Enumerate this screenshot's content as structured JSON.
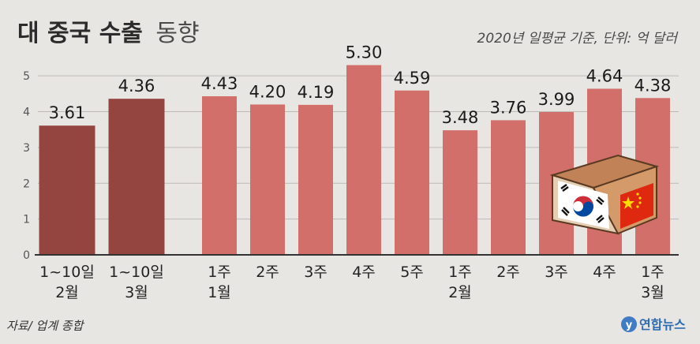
{
  "header": {
    "title_bold": "대 중국 수출",
    "title_light": "동향",
    "subtitle": "2020년 일평균 기준, 단위: 억 달러"
  },
  "footer": {
    "source": "자료/ 업계 종합",
    "brand": "연합뉴스"
  },
  "colors": {
    "dark_bar": "#944540",
    "light_bar": "#d26f6a",
    "background": "#e8e6e3",
    "axis": "#333333",
    "grid": "#bdbab6"
  },
  "chart_data": {
    "type": "bar",
    "title": "대 중국 수출 동향",
    "subtitle": "2020년 일평균 기준, 단위: 억 달러",
    "ylim": [
      0,
      5.4
    ],
    "yticks": [
      "0",
      "1",
      "2",
      "3",
      "4",
      "5"
    ],
    "grid": true,
    "categories": [
      [
        "1~10일",
        "2월"
      ],
      [
        "1~10일",
        "3월"
      ],
      [
        "1주",
        "1월"
      ],
      [
        "2주"
      ],
      [
        "3주"
      ],
      [
        "4주"
      ],
      [
        "5주"
      ],
      [
        "1주",
        "2월"
      ],
      [
        "2주"
      ],
      [
        "3주"
      ],
      [
        "4주"
      ],
      [
        "1주",
        "3월"
      ]
    ],
    "values": [
      3.61,
      4.36,
      4.43,
      4.2,
      4.19,
      5.3,
      4.59,
      3.48,
      3.76,
      3.99,
      4.64,
      4.38
    ],
    "labels": [
      "3.61",
      "4.36",
      "4.43",
      "4.20",
      "4.19",
      "5.30",
      "4.59",
      "3.48",
      "3.76",
      "3.99",
      "4.64",
      "4.38"
    ],
    "groups": [
      "dark",
      "dark",
      "light",
      "light",
      "light",
      "light",
      "light",
      "light",
      "light",
      "light",
      "light",
      "light"
    ]
  }
}
